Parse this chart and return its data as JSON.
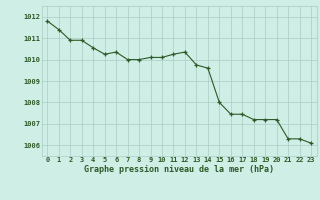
{
  "x": [
    0,
    1,
    2,
    3,
    4,
    5,
    6,
    7,
    8,
    9,
    10,
    11,
    12,
    13,
    14,
    15,
    16,
    17,
    18,
    19,
    20,
    21,
    22,
    23
  ],
  "y": [
    1011.8,
    1011.4,
    1010.9,
    1010.9,
    1010.55,
    1010.25,
    1010.35,
    1010.0,
    1010.0,
    1010.1,
    1010.1,
    1010.25,
    1010.35,
    1009.75,
    1009.6,
    1008.0,
    1007.45,
    1007.45,
    1007.2,
    1007.2,
    1007.2,
    1006.3,
    1006.3,
    1006.1
  ],
  "line_color": "#2d5a27",
  "marker_color": "#2d5a27",
  "bg_color": "#ceeee6",
  "grid_color_major": "#aaccc4",
  "grid_color_minor": "#cce8e0",
  "xlabel": "Graphe pression niveau de la mer (hPa)",
  "ylim": [
    1005.5,
    1012.5
  ],
  "xlim": [
    -0.5,
    23.5
  ],
  "yticks": [
    1006,
    1007,
    1008,
    1009,
    1010,
    1011,
    1012
  ],
  "xticks": [
    0,
    1,
    2,
    3,
    4,
    5,
    6,
    7,
    8,
    9,
    10,
    11,
    12,
    13,
    14,
    15,
    16,
    17,
    18,
    19,
    20,
    21,
    22,
    23
  ],
  "tick_fontsize": 5.0,
  "xlabel_fontsize": 6.0,
  "tick_color": "#2d5a27"
}
